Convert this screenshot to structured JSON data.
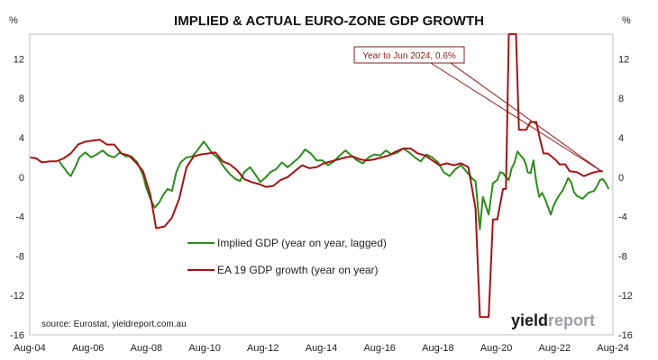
{
  "chart_data": {
    "type": "line",
    "title": "IMPLIED & ACTUAL EURO-ZONE GDP GROWTH",
    "y_unit_left": "%",
    "y_unit_right": "%",
    "x_tick_labels": [
      "Aug-04",
      "Aug-06",
      "Aug-08",
      "Aug-10",
      "Aug-12",
      "Aug-14",
      "Aug-16",
      "Aug-18",
      "Aug-20",
      "Aug-22",
      "Aug-24"
    ],
    "y_ticks_left": [
      12,
      8,
      4,
      0,
      -4,
      -8,
      -12,
      -16
    ],
    "y_ticks_left_labels": [
      "12",
      "8",
      "4",
      "0",
      "-4",
      "-8",
      "-12",
      "-16"
    ],
    "y_ticks_right": [
      12,
      8,
      4,
      0,
      -4,
      -8,
      -12,
      -16
    ],
    "y_ticks_right_labels": [
      "12",
      "8",
      "4",
      "0",
      "-4",
      "-8",
      "-12",
      "-16"
    ],
    "ylim": [
      -16,
      14.5
    ],
    "xlim": [
      2004.58,
      2024.75
    ],
    "grid": false,
    "legend_position": "center-left",
    "series": [
      {
        "name": "Implied GDP (year on year, lagged)",
        "color": "#2e8b1e",
        "points": [
          [
            2005.6,
            1.6
          ],
          [
            2005.75,
            1.0
          ],
          [
            2005.9,
            0.4
          ],
          [
            2006.0,
            0.1
          ],
          [
            2006.15,
            1.0
          ],
          [
            2006.3,
            2.0
          ],
          [
            2006.5,
            2.5
          ],
          [
            2006.7,
            2.0
          ],
          [
            2006.9,
            2.3
          ],
          [
            2007.1,
            2.7
          ],
          [
            2007.3,
            2.2
          ],
          [
            2007.5,
            2.0
          ],
          [
            2007.7,
            2.5
          ],
          [
            2007.9,
            2.1
          ],
          [
            2008.1,
            2.1
          ],
          [
            2008.3,
            1.5
          ],
          [
            2008.5,
            0.2
          ],
          [
            2008.6,
            -1.0
          ],
          [
            2008.75,
            -2.2
          ],
          [
            2008.9,
            -3.1
          ],
          [
            2009.05,
            -2.6
          ],
          [
            2009.2,
            -1.8
          ],
          [
            2009.35,
            -1.2
          ],
          [
            2009.5,
            -1.4
          ],
          [
            2009.65,
            0.5
          ],
          [
            2009.8,
            1.5
          ],
          [
            2010.0,
            2.0
          ],
          [
            2010.2,
            2.1
          ],
          [
            2010.35,
            2.6
          ],
          [
            2010.5,
            3.2
          ],
          [
            2010.6,
            3.6
          ],
          [
            2010.75,
            3.0
          ],
          [
            2010.9,
            2.4
          ],
          [
            2011.1,
            1.9
          ],
          [
            2011.3,
            1.0
          ],
          [
            2011.5,
            0.3
          ],
          [
            2011.7,
            -0.2
          ],
          [
            2011.85,
            -0.4
          ],
          [
            2012.0,
            0.5
          ],
          [
            2012.2,
            1.0
          ],
          [
            2012.4,
            0.2
          ],
          [
            2012.55,
            -0.5
          ],
          [
            2012.75,
            0.0
          ],
          [
            2012.9,
            0.5
          ],
          [
            2013.1,
            0.8
          ],
          [
            2013.3,
            1.5
          ],
          [
            2013.5,
            1.0
          ],
          [
            2013.7,
            1.5
          ],
          [
            2013.9,
            2.0
          ],
          [
            2014.1,
            2.8
          ],
          [
            2014.3,
            2.4
          ],
          [
            2014.5,
            1.7
          ],
          [
            2014.7,
            1.7
          ],
          [
            2014.9,
            1.2
          ],
          [
            2015.1,
            1.6
          ],
          [
            2015.3,
            2.2
          ],
          [
            2015.5,
            2.7
          ],
          [
            2015.7,
            2.2
          ],
          [
            2015.9,
            1.7
          ],
          [
            2016.1,
            1.4
          ],
          [
            2016.3,
            2.0
          ],
          [
            2016.5,
            2.3
          ],
          [
            2016.7,
            2.2
          ],
          [
            2016.9,
            2.7
          ],
          [
            2017.1,
            2.3
          ],
          [
            2017.3,
            2.5
          ],
          [
            2017.5,
            2.9
          ],
          [
            2017.7,
            2.5
          ],
          [
            2017.9,
            2.0
          ],
          [
            2018.1,
            1.6
          ],
          [
            2018.3,
            2.3
          ],
          [
            2018.5,
            2.0
          ],
          [
            2018.7,
            1.5
          ],
          [
            2018.9,
            0.5
          ],
          [
            2019.1,
            0.1
          ],
          [
            2019.3,
            0.8
          ],
          [
            2019.5,
            1.2
          ],
          [
            2019.7,
            0.5
          ],
          [
            2019.9,
            -0.2
          ],
          [
            2020.0,
            -0.4
          ],
          [
            2020.05,
            -2.0
          ],
          [
            2020.15,
            -5.3
          ],
          [
            2020.25,
            -2.0
          ],
          [
            2020.45,
            -3.8
          ],
          [
            2020.6,
            -0.6
          ],
          [
            2020.75,
            -0.3
          ],
          [
            2020.85,
            0.5
          ],
          [
            2020.95,
            0.4
          ],
          [
            2021.05,
            0.0
          ],
          [
            2021.15,
            -0.3
          ],
          [
            2021.25,
            0.9
          ],
          [
            2021.35,
            1.5
          ],
          [
            2021.45,
            2.6
          ],
          [
            2021.55,
            2.2
          ],
          [
            2021.65,
            1.9
          ],
          [
            2021.75,
            1.2
          ],
          [
            2021.8,
            0.5
          ],
          [
            2021.9,
            0.4
          ],
          [
            2022.0,
            1.7
          ],
          [
            2022.1,
            -0.5
          ],
          [
            2022.2,
            -2.0
          ],
          [
            2022.3,
            -1.6
          ],
          [
            2022.4,
            -2.2
          ],
          [
            2022.5,
            -3.0
          ],
          [
            2022.6,
            -3.8
          ],
          [
            2022.7,
            -2.9
          ],
          [
            2022.8,
            -2.3
          ],
          [
            2022.9,
            -1.8
          ],
          [
            2023.0,
            -1.4
          ],
          [
            2023.1,
            -0.8
          ],
          [
            2023.2,
            -0.1
          ],
          [
            2023.3,
            -0.5
          ],
          [
            2023.4,
            -1.5
          ],
          [
            2023.5,
            -1.9
          ],
          [
            2023.7,
            -2.2
          ],
          [
            2023.9,
            -1.6
          ],
          [
            2024.1,
            -1.4
          ],
          [
            2024.2,
            -0.9
          ],
          [
            2024.3,
            -0.3
          ],
          [
            2024.4,
            -0.2
          ],
          [
            2024.5,
            -0.6
          ],
          [
            2024.6,
            -1.2
          ]
        ]
      },
      {
        "name": "EA 19 GDP growth (year on year)",
        "color": "#a01414",
        "points": [
          [
            2004.6,
            2.0
          ],
          [
            2004.8,
            1.9
          ],
          [
            2005.0,
            1.5
          ],
          [
            2005.3,
            1.6
          ],
          [
            2005.5,
            1.6
          ],
          [
            2005.75,
            1.9
          ],
          [
            2006.0,
            2.4
          ],
          [
            2006.25,
            3.3
          ],
          [
            2006.5,
            3.6
          ],
          [
            2006.75,
            3.7
          ],
          [
            2007.0,
            3.8
          ],
          [
            2007.25,
            3.3
          ],
          [
            2007.5,
            3.3
          ],
          [
            2007.75,
            2.4
          ],
          [
            2008.0,
            2.2
          ],
          [
            2008.25,
            1.5
          ],
          [
            2008.5,
            0.6
          ],
          [
            2008.75,
            -1.8
          ],
          [
            2008.95,
            -5.2
          ],
          [
            2009.25,
            -5.0
          ],
          [
            2009.5,
            -4.1
          ],
          [
            2009.75,
            -2.2
          ],
          [
            2010.0,
            1.0
          ],
          [
            2010.25,
            2.1
          ],
          [
            2010.5,
            2.3
          ],
          [
            2010.75,
            2.4
          ],
          [
            2011.0,
            2.5
          ],
          [
            2011.25,
            1.6
          ],
          [
            2011.5,
            1.3
          ],
          [
            2011.75,
            0.7
          ],
          [
            2012.0,
            -0.2
          ],
          [
            2012.25,
            -0.5
          ],
          [
            2012.5,
            -0.7
          ],
          [
            2012.75,
            -1.0
          ],
          [
            2013.0,
            -0.9
          ],
          [
            2013.25,
            -0.3
          ],
          [
            2013.5,
            0.0
          ],
          [
            2013.75,
            0.6
          ],
          [
            2014.0,
            1.2
          ],
          [
            2014.25,
            0.9
          ],
          [
            2014.5,
            1.0
          ],
          [
            2014.75,
            1.4
          ],
          [
            2015.0,
            1.6
          ],
          [
            2015.25,
            1.8
          ],
          [
            2015.5,
            2.0
          ],
          [
            2015.75,
            2.1
          ],
          [
            2016.0,
            1.8
          ],
          [
            2016.25,
            1.7
          ],
          [
            2016.5,
            1.8
          ],
          [
            2016.75,
            2.0
          ],
          [
            2017.0,
            2.2
          ],
          [
            2017.25,
            2.6
          ],
          [
            2017.5,
            2.9
          ],
          [
            2017.75,
            2.9
          ],
          [
            2018.0,
            2.4
          ],
          [
            2018.25,
            2.2
          ],
          [
            2018.5,
            1.7
          ],
          [
            2018.75,
            1.2
          ],
          [
            2019.0,
            1.4
          ],
          [
            2019.25,
            1.2
          ],
          [
            2019.5,
            1.4
          ],
          [
            2019.75,
            1.0
          ],
          [
            2020.0,
            -3.2
          ],
          [
            2020.15,
            -14.2
          ],
          [
            2020.45,
            -14.2
          ],
          [
            2020.6,
            -4.3
          ],
          [
            2020.75,
            -4.3
          ],
          [
            2020.95,
            -1.2
          ],
          [
            2021.05,
            -1.2
          ],
          [
            2021.15,
            14.5
          ],
          [
            2021.4,
            14.5
          ],
          [
            2021.5,
            4.8
          ],
          [
            2021.75,
            4.8
          ],
          [
            2021.9,
            5.6
          ],
          [
            2022.1,
            5.6
          ],
          [
            2022.2,
            4.2
          ],
          [
            2022.35,
            2.4
          ],
          [
            2022.5,
            2.4
          ],
          [
            2022.75,
            1.8
          ],
          [
            2022.9,
            1.3
          ],
          [
            2023.1,
            1.3
          ],
          [
            2023.25,
            0.6
          ],
          [
            2023.5,
            0.5
          ],
          [
            2023.75,
            0.1
          ],
          [
            2024.0,
            0.4
          ],
          [
            2024.25,
            0.6
          ],
          [
            2024.4,
            0.6
          ]
        ]
      }
    ],
    "annotation": {
      "text": "Year to Jun 2024, 0.6%",
      "target": [
        2024.35,
        0.6
      ]
    },
    "source": "source: Eurostat, yieldreport.com.au",
    "logo": {
      "part1": "yield",
      "part2": "report",
      "color1": "#1a1a1a",
      "color2": "#9aa0a6"
    }
  }
}
